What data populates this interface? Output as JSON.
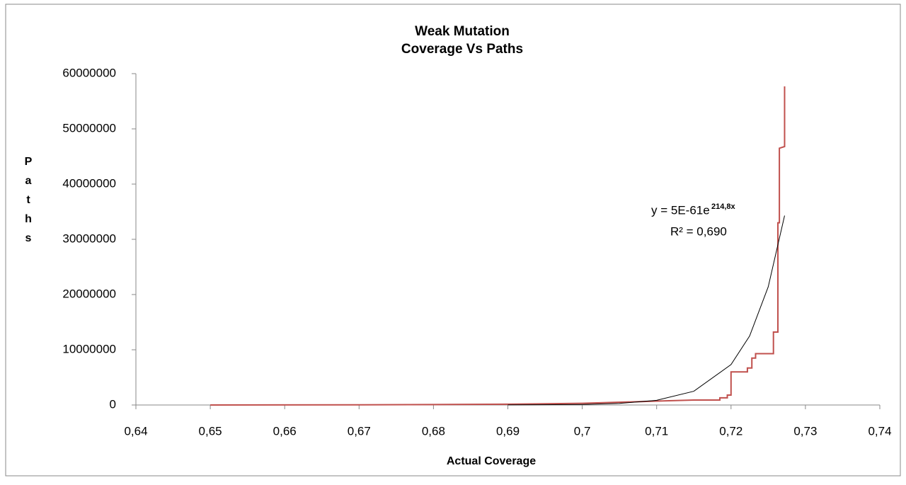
{
  "chart_data": {
    "type": "line",
    "title": "Weak Mutation",
    "subtitle": "Coverage Vs Paths",
    "x_label": "Actual Coverage",
    "y_label": "Paths",
    "trendline_equation": {
      "base": "y = 5E-61e",
      "exponent": "214,8x"
    },
    "trendline_r_squared": "R² = 0,690",
    "xlim": [
      0.64,
      0.74
    ],
    "ylim": [
      0,
      60000000
    ],
    "xticks": [
      {
        "value": 0.64,
        "label": "0,64"
      },
      {
        "value": 0.65,
        "label": "0,65"
      },
      {
        "value": 0.66,
        "label": "0,66"
      },
      {
        "value": 0.67,
        "label": "0,67"
      },
      {
        "value": 0.68,
        "label": "0,68"
      },
      {
        "value": 0.69,
        "label": "0,69"
      },
      {
        "value": 0.7,
        "label": "0,7"
      },
      {
        "value": 0.71,
        "label": "0,71"
      },
      {
        "value": 0.72,
        "label": "0,72"
      },
      {
        "value": 0.73,
        "label": "0,73"
      },
      {
        "value": 0.74,
        "label": "0,74"
      }
    ],
    "yticks": [
      0,
      10000000,
      20000000,
      30000000,
      40000000,
      50000000,
      60000000
    ],
    "grid": false,
    "series": [
      {
        "color": "#c0504d",
        "width": 2,
        "x": [
          0.65,
          0.67,
          0.68,
          0.69,
          0.7,
          0.71,
          0.715,
          0.7185,
          0.7185,
          0.7195,
          0.7195,
          0.72,
          0.72,
          0.7222,
          0.7222,
          0.7228,
          0.7228,
          0.7233,
          0.7233,
          0.7257,
          0.7257,
          0.7263,
          0.7263,
          0.7265,
          0.7265,
          0.7272,
          0.7272
        ],
        "values": [
          0,
          30000,
          80000,
          150000,
          300000,
          700000,
          900000,
          900000,
          1300000,
          1300000,
          1800000,
          1800000,
          6000000,
          6000000,
          6700000,
          6700000,
          8500000,
          8500000,
          9300000,
          9300000,
          13200000,
          13200000,
          33000000,
          33000000,
          46500000,
          46800000,
          57700000
        ]
      },
      {
        "color": "#000000",
        "width": 1,
        "x": [
          0.69,
          0.7,
          0.705,
          0.71,
          0.715,
          0.72,
          0.7225,
          0.725,
          0.7272
        ],
        "values": [
          11600,
          99700,
          290000,
          852000,
          2490000,
          7320000,
          12500000,
          21400000,
          34300000
        ]
      }
    ]
  }
}
